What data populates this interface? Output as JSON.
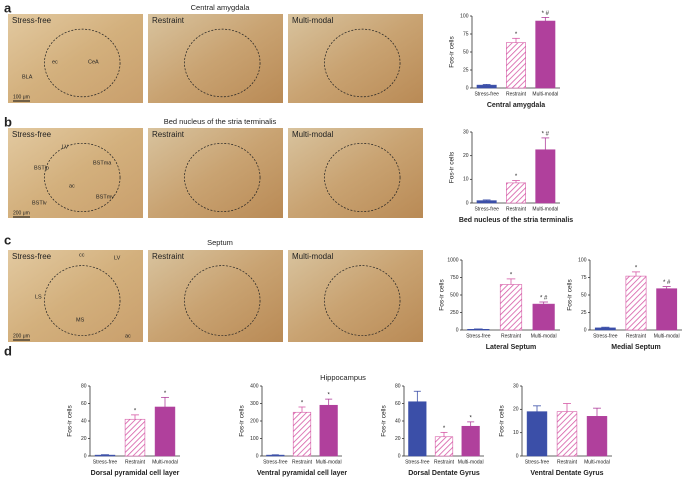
{
  "panels": [
    {
      "letter": "a",
      "title": "Central amygdala",
      "images": [
        {
          "label": "Stress-free",
          "annotations": [
            "ec",
            "CeA",
            "BLA"
          ],
          "scale": "100 μm"
        },
        {
          "label": "Restraint"
        },
        {
          "label": "Multi-modal"
        }
      ]
    },
    {
      "letter": "b",
      "title": "Bed nucleus of the stria terminalis",
      "images": [
        {
          "label": "Stress-free",
          "annotations": [
            "LV",
            "BSTma",
            "BSTlp",
            "ac",
            "BSTlv",
            "BSTmv"
          ],
          "scale": "200 μm"
        },
        {
          "label": "Restraint"
        },
        {
          "label": "Multi-modal"
        }
      ]
    },
    {
      "letter": "c",
      "title": "Septum",
      "images": [
        {
          "label": "Stress-free",
          "annotations": [
            "cc",
            "LV",
            "LS",
            "MS",
            "ac"
          ],
          "scale": "200 μm"
        },
        {
          "label": "Restraint"
        },
        {
          "label": "Multi-modal"
        }
      ]
    },
    {
      "letter": "d",
      "title": "Hippocampus"
    }
  ],
  "chart_data": [
    {
      "type": "bar",
      "xlabel": "Central amygdala",
      "ylabel": "Fos-ir cells",
      "categories": [
        "Stress-free",
        "Restraint",
        "Multi-modal"
      ],
      "values": [
        4,
        63,
        93
      ],
      "errors": [
        1,
        6,
        5
      ],
      "annotations": [
        null,
        "*",
        "* #"
      ],
      "colors": [
        "#3b4fa8",
        "#d65aa6",
        "#b0409c"
      ],
      "hatch": [
        false,
        true,
        false
      ],
      "ylim": [
        0,
        100
      ],
      "yticks": [
        0,
        25,
        50,
        75,
        100
      ]
    },
    {
      "type": "bar",
      "xlabel": "Bed nucleus of the stria terminalis",
      "ylabel": "Fos-ir cells",
      "categories": [
        "Stress-free",
        "Restraint",
        "Multi-modal"
      ],
      "values": [
        1,
        8.5,
        22.5
      ],
      "errors": [
        0.3,
        1,
        5
      ],
      "annotations": [
        null,
        "*",
        "* #"
      ],
      "colors": [
        "#3b4fa8",
        "#d65aa6",
        "#b0409c"
      ],
      "hatch": [
        false,
        true,
        false
      ],
      "ylim": [
        0,
        30
      ],
      "yticks": [
        0,
        10,
        20,
        30
      ]
    },
    {
      "type": "bar",
      "xlabel": "Lateral Septum",
      "ylabel": "Fos-ir cells",
      "categories": [
        "Stress-free",
        "Restraint",
        "Multi-modal"
      ],
      "values": [
        10,
        650,
        370
      ],
      "errors": [
        5,
        80,
        30
      ],
      "annotations": [
        null,
        "*",
        "* #"
      ],
      "colors": [
        "#3b4fa8",
        "#d65aa6",
        "#b0409c"
      ],
      "hatch": [
        false,
        true,
        false
      ],
      "ylim": [
        0,
        1000
      ],
      "yticks": [
        0,
        250,
        500,
        750,
        1000
      ]
    },
    {
      "type": "bar",
      "xlabel": "Medial Septum",
      "ylabel": "Fos-ir cells",
      "categories": [
        "Stress-free",
        "Restraint",
        "Multi-modal"
      ],
      "values": [
        3,
        77,
        59
      ],
      "errors": [
        1,
        6,
        3
      ],
      "annotations": [
        null,
        "*",
        "* #"
      ],
      "colors": [
        "#3b4fa8",
        "#d65aa6",
        "#b0409c"
      ],
      "hatch": [
        false,
        true,
        false
      ],
      "ylim": [
        0,
        100
      ],
      "yticks": [
        0,
        25,
        50,
        75,
        100
      ]
    },
    {
      "type": "bar",
      "xlabel": "Dorsal pyramidal cell layer",
      "ylabel": "Fos-ir cells",
      "categories": [
        "Stress-free",
        "Restraint",
        "Multi-modal"
      ],
      "values": [
        1,
        42,
        56
      ],
      "errors": [
        0.5,
        5,
        11
      ],
      "annotations": [
        null,
        "*",
        "*"
      ],
      "colors": [
        "#3b4fa8",
        "#d65aa6",
        "#b0409c"
      ],
      "hatch": [
        false,
        true,
        false
      ],
      "ylim": [
        0,
        80
      ],
      "yticks": [
        0,
        20,
        40,
        60,
        80
      ]
    },
    {
      "type": "bar",
      "xlabel": "Ventral pyramidal cell layer",
      "ylabel": "Fos-ir cells",
      "categories": [
        "Stress-free",
        "Restraint",
        "Multi-modal"
      ],
      "values": [
        5,
        250,
        290
      ],
      "errors": [
        2,
        30,
        35
      ],
      "annotations": [
        null,
        "*",
        "*"
      ],
      "colors": [
        "#3b4fa8",
        "#d65aa6",
        "#b0409c"
      ],
      "hatch": [
        false,
        true,
        false
      ],
      "ylim": [
        0,
        400
      ],
      "yticks": [
        0,
        100,
        200,
        300,
        400
      ]
    },
    {
      "type": "bar",
      "xlabel": "Dorsal Dentate Gyrus",
      "ylabel": "Fos-ir cells",
      "categories": [
        "Stress-free",
        "Restraint",
        "Multi-modal"
      ],
      "values": [
        62,
        22,
        34
      ],
      "errors": [
        12,
        5,
        5
      ],
      "annotations": [
        null,
        "*",
        "*"
      ],
      "colors": [
        "#3b4fa8",
        "#d65aa6",
        "#b0409c"
      ],
      "hatch": [
        false,
        true,
        false
      ],
      "ylim": [
        0,
        80
      ],
      "yticks": [
        0,
        20,
        40,
        60,
        80
      ]
    },
    {
      "type": "bar",
      "xlabel": "Ventral Dentate Gyrus",
      "ylabel": "Fos-ir cells",
      "categories": [
        "Stress-free",
        "Restraint",
        "Multi-modal"
      ],
      "values": [
        19,
        19,
        17
      ],
      "errors": [
        2.5,
        3.5,
        3.5
      ],
      "colors": [
        "#3b4fa8",
        "#d65aa6",
        "#b0409c"
      ],
      "hatch": [
        false,
        true,
        false
      ],
      "ylim": [
        0,
        30
      ],
      "yticks": [
        0,
        10,
        20,
        30
      ]
    }
  ]
}
